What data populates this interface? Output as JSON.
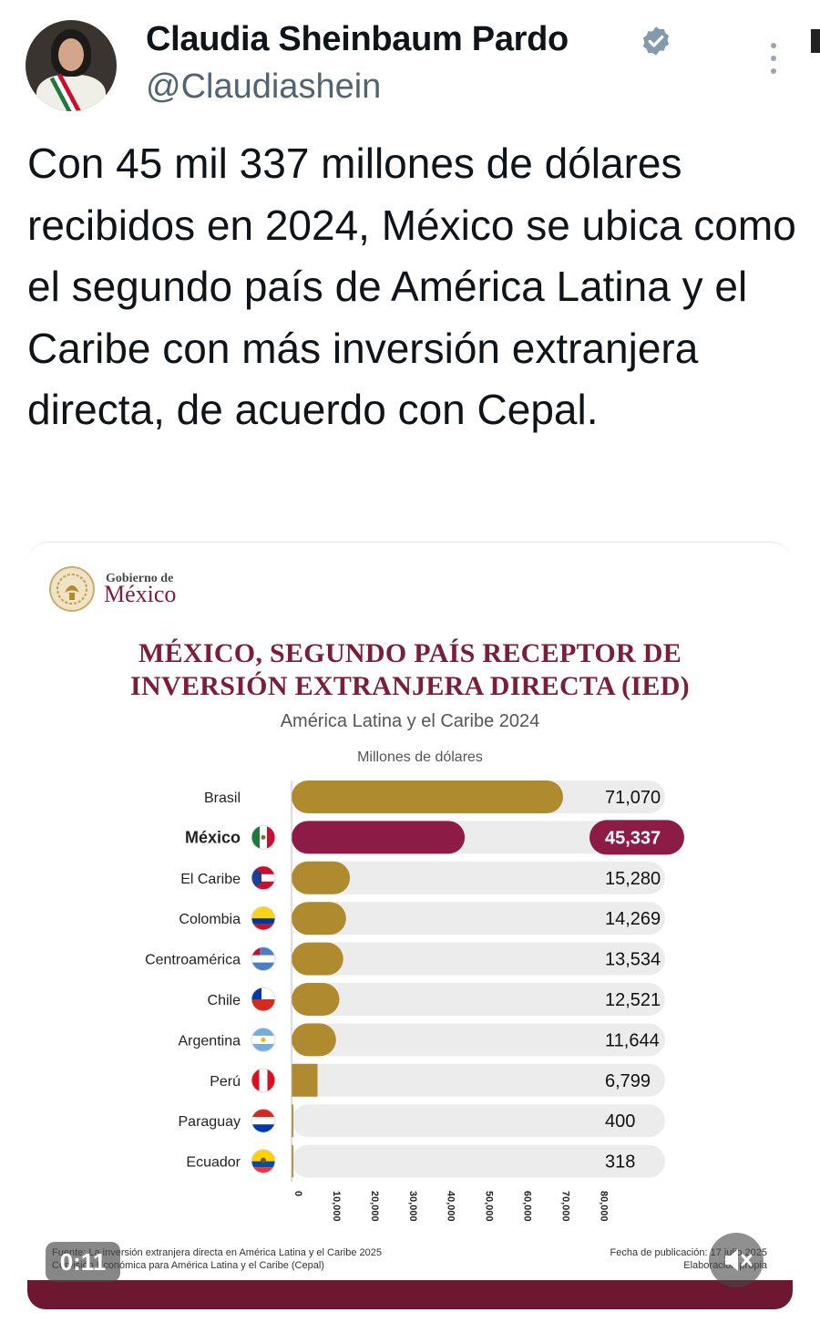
{
  "author": {
    "name": "Claudia Sheinbaum Pardo",
    "handle": "@Claudiashein",
    "verified_color": "#829aab"
  },
  "tweet": {
    "text": "Con 45 mil 337 millones de dólares recibidos en 2024, México se ubica como el segundo país de América Latina y el Caribe con más inversión extranjera directa, de acuerdo con Cepal."
  },
  "media": {
    "logo_small": "Gobierno de",
    "logo_big": "México",
    "title_line1": "MÉXICO, SEGUNDO PAÍS RECEPTOR DE",
    "title_line2": "INVERSIÓN EXTRANJERA DIRECTA (IED)",
    "subtitle": "América Latina y el Caribe 2024",
    "units": "Millones de dólares",
    "source_line1": "Fuente: La inversión extranjera directa en América Latina y el Caribe 2025",
    "source_line2": "Comisión Económica para América Latina y el Caribe (Cepal)",
    "pub_line1": "Fecha de publicación: 17 julio 2025",
    "pub_line2": "Elaboración propia",
    "video_time": "0:11",
    "colors": {
      "bar": "#b08a2e",
      "highlight": "#8c1b45",
      "track": "#ececec",
      "title": "#7b1e3a",
      "footer": "#6d1830"
    }
  },
  "chart_data": {
    "type": "bar",
    "orientation": "horizontal",
    "title": "MÉXICO, SEGUNDO PAÍS RECEPTOR DE INVERSIÓN EXTRANJERA DIRECTA (IED)",
    "subtitle": "América Latina y el Caribe 2024",
    "xlabel": "Millones de dólares",
    "categories": [
      "Brasil",
      "México",
      "El Caribe",
      "Colombia",
      "Centroamérica",
      "Chile",
      "Argentina",
      "Perú",
      "Paraguay",
      "Ecuador"
    ],
    "values": [
      71070,
      45337,
      15280,
      14269,
      13534,
      12521,
      11644,
      6799,
      400,
      318
    ],
    "value_labels": [
      "71,070",
      "45,337",
      "15,280",
      "14,269",
      "13,534",
      "12,521",
      "11,644",
      "6,799",
      "400",
      "318"
    ],
    "highlight": "México",
    "xlim": [
      0,
      80000
    ],
    "xticks": [
      "0",
      "10,000",
      "20,000",
      "30,000",
      "40,000",
      "50,000",
      "60,000",
      "70,000",
      "80,000"
    ],
    "xtick_values": [
      0,
      10000,
      20000,
      30000,
      40000,
      50000,
      60000,
      70000,
      80000
    ],
    "grid": false,
    "legend": "none"
  }
}
